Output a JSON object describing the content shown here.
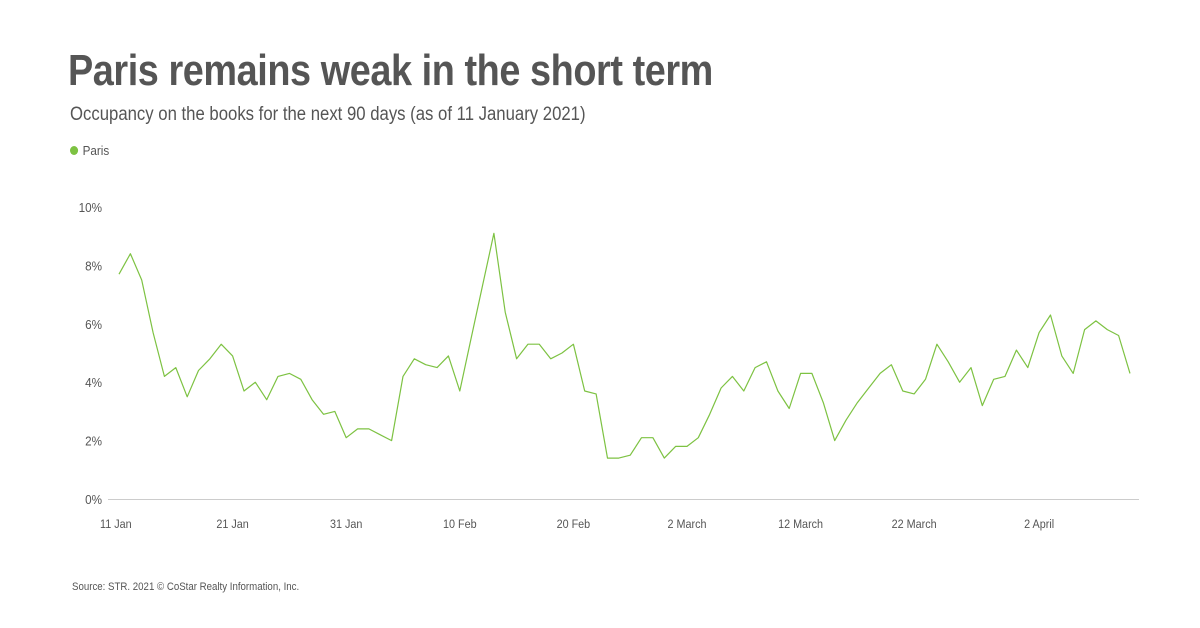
{
  "title": "Paris remains weak in the short term",
  "subtitle": "Occupancy on the books for the next 90 days (as of 11 January 2021)",
  "source": "Source: STR. 2021 © CoStar Realty Information, Inc.",
  "colors": {
    "series": "#7dc242",
    "text": "#555555",
    "axis": "#cccccc"
  },
  "chart_data": {
    "type": "line",
    "title": "Paris remains weak in the short term",
    "subtitle": "Occupancy on the books for the next 90 days (as of 11 January 2021)",
    "xlabel": "",
    "ylabel": "",
    "ylim": [
      0,
      10
    ],
    "y_ticks": [
      "0%",
      "2%",
      "4%",
      "6%",
      "8%",
      "10%"
    ],
    "x_ticks": [
      {
        "index": 0,
        "label": "11 Jan"
      },
      {
        "index": 10,
        "label": "21 Jan"
      },
      {
        "index": 20,
        "label": "31 Jan"
      },
      {
        "index": 30,
        "label": "10 Feb"
      },
      {
        "index": 40,
        "label": "20 Feb"
      },
      {
        "index": 50,
        "label": "2 March"
      },
      {
        "index": 60,
        "label": "12 March"
      },
      {
        "index": 70,
        "label": "22 March"
      },
      {
        "index": 81,
        "label": "2 April"
      }
    ],
    "grid": false,
    "legend_position": "top-left",
    "series": [
      {
        "name": "Paris",
        "values": [
          7.7,
          8.4,
          7.5,
          5.7,
          4.2,
          4.5,
          3.5,
          4.4,
          4.8,
          5.3,
          4.9,
          3.7,
          4.0,
          3.4,
          4.2,
          4.3,
          4.1,
          3.4,
          2.9,
          3.0,
          2.1,
          2.4,
          2.4,
          2.2,
          2.0,
          4.2,
          4.8,
          4.6,
          4.5,
          4.9,
          3.7,
          5.5,
          7.3,
          9.1,
          6.4,
          4.8,
          5.3,
          5.3,
          4.8,
          5.0,
          5.3,
          3.7,
          3.6,
          1.4,
          1.4,
          1.5,
          2.1,
          2.1,
          1.4,
          1.8,
          1.8,
          2.1,
          2.9,
          3.8,
          4.2,
          3.7,
          4.5,
          4.7,
          3.7,
          3.1,
          4.3,
          4.3,
          3.3,
          2.0,
          2.7,
          3.3,
          3.8,
          4.3,
          4.6,
          3.7,
          3.6,
          4.1,
          5.3,
          4.7,
          4.0,
          4.5,
          3.2,
          4.1,
          4.2,
          5.1,
          4.5,
          5.7,
          6.3,
          4.9,
          4.3,
          5.8,
          6.1,
          5.8,
          5.6,
          4.3
        ]
      }
    ]
  }
}
